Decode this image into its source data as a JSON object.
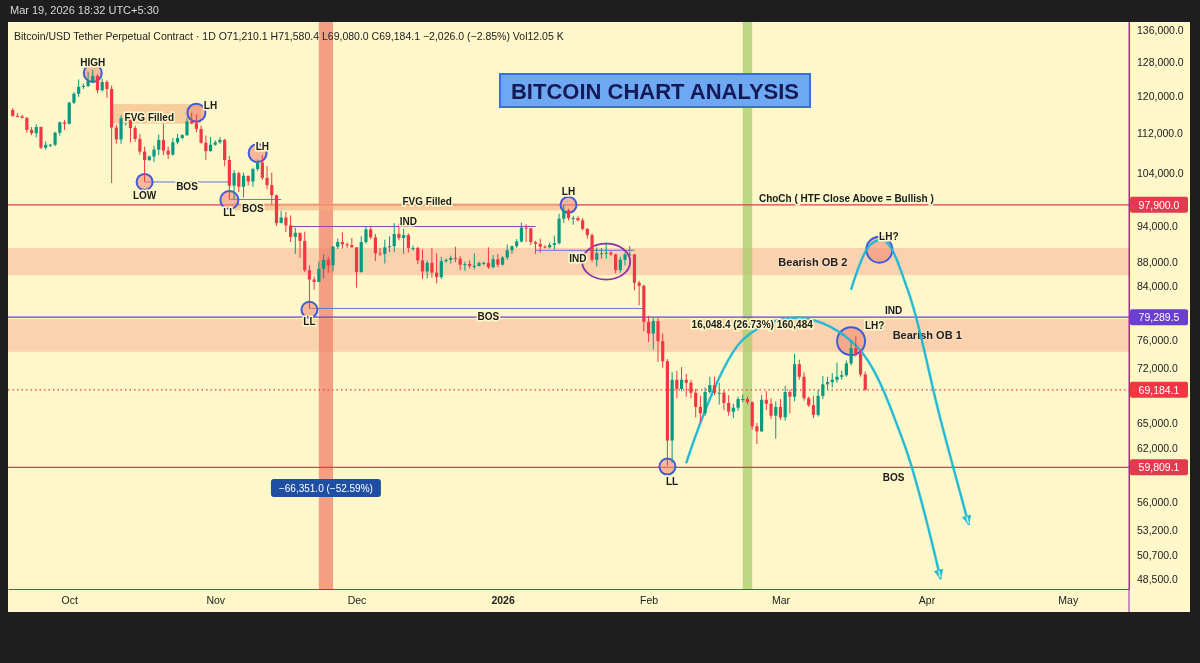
{
  "chart_data": {
    "type": "candlestick",
    "title": "BITCOIN CHART ANALYSIS",
    "subtitle": "Bitcoin/USD Tether Perpetual Contract · 1D   O71,210.1  H71,580.4  L69,080.0  C69,184.1  −2,026.0 (−2.85%)  Vol12.05 K",
    "log": true,
    "xlim": [
      "2025-09-18",
      "2026-05-14"
    ],
    "ylim": [
      47600,
      138000
    ],
    "xticks": [
      {
        "value": "2025-10-01",
        "label": "Oct"
      },
      {
        "value": "2025-11-01",
        "label": "Nov"
      },
      {
        "value": "2025-12-01",
        "label": "Dec"
      },
      {
        "value": "2026-01-01",
        "label": "2026"
      },
      {
        "value": "2026-02-01",
        "label": "Feb"
      },
      {
        "value": "2026-03-01",
        "label": "Mar"
      },
      {
        "value": "2026-04-01",
        "label": "Apr"
      },
      {
        "value": "2026-05-01",
        "label": "May"
      }
    ],
    "yticks": [
      {
        "value": 136000,
        "label": "136,000.0"
      },
      {
        "value": 128000,
        "label": "128,000.0"
      },
      {
        "value": 120000,
        "label": "120,000.0"
      },
      {
        "value": 112000,
        "label": "112,000.0"
      },
      {
        "value": 104000,
        "label": "104,000.0"
      },
      {
        "value": 94000,
        "label": "94,000.0"
      },
      {
        "value": 88000,
        "label": "88,000.0"
      },
      {
        "value": 84000,
        "label": "84,000.0"
      },
      {
        "value": 76000,
        "label": "76,000.0"
      },
      {
        "value": 72000,
        "label": "72,000.0"
      },
      {
        "value": 65000,
        "label": "65,000.0"
      },
      {
        "value": 62000,
        "label": "62,000.0"
      },
      {
        "value": 56000,
        "label": "56,000.0"
      },
      {
        "value": 53200,
        "label": "53,200.0"
      },
      {
        "value": 50700,
        "label": "50,700.0"
      },
      {
        "value": 48500,
        "label": "48,500.0"
      }
    ],
    "x": [
      "2025-09-19",
      "2025-09-20",
      "2025-09-21",
      "2025-09-22",
      "2025-09-23",
      "2025-09-24",
      "2025-09-25",
      "2025-09-26",
      "2025-09-27",
      "2025-09-28",
      "2025-09-29",
      "2025-09-30",
      "2025-10-01",
      "2025-10-02",
      "2025-10-03",
      "2025-10-04",
      "2025-10-05",
      "2025-10-06",
      "2025-10-07",
      "2025-10-08",
      "2025-10-09",
      "2025-10-10",
      "2025-10-11",
      "2025-10-12",
      "2025-10-13",
      "2025-10-14",
      "2025-10-15",
      "2025-10-16",
      "2025-10-17",
      "2025-10-18",
      "2025-10-19",
      "2025-10-20",
      "2025-10-21",
      "2025-10-22",
      "2025-10-23",
      "2025-10-24",
      "2025-10-25",
      "2025-10-26",
      "2025-10-27",
      "2025-10-28",
      "2025-10-29",
      "2025-10-30",
      "2025-10-31",
      "2025-11-01",
      "2025-11-02",
      "2025-11-03",
      "2025-11-04",
      "2025-11-05",
      "2025-11-06",
      "2025-11-07",
      "2025-11-08",
      "2025-11-09",
      "2025-11-10",
      "2025-11-11",
      "2025-11-12",
      "2025-11-13",
      "2025-11-14",
      "2025-11-15",
      "2025-11-16",
      "2025-11-17",
      "2025-11-18",
      "2025-11-19",
      "2025-11-20",
      "2025-11-21",
      "2025-11-22",
      "2025-11-23",
      "2025-11-24",
      "2025-11-25",
      "2025-11-26",
      "2025-11-27",
      "2025-11-28",
      "2025-11-29",
      "2025-11-30",
      "2025-12-01",
      "2025-12-02",
      "2025-12-03",
      "2025-12-04",
      "2025-12-05",
      "2025-12-06",
      "2025-12-07",
      "2025-12-08",
      "2025-12-09",
      "2025-12-10",
      "2025-12-11",
      "2025-12-12",
      "2025-12-13",
      "2025-12-14",
      "2025-12-15",
      "2025-12-16",
      "2025-12-17",
      "2025-12-18",
      "2025-12-19",
      "2025-12-20",
      "2025-12-21",
      "2025-12-22",
      "2025-12-23",
      "2025-12-24",
      "2025-12-25",
      "2025-12-26",
      "2025-12-27",
      "2025-12-28",
      "2025-12-29",
      "2025-12-30",
      "2025-12-31",
      "2026-01-01",
      "2026-01-02",
      "2026-01-03",
      "2026-01-04",
      "2026-01-05",
      "2026-01-06",
      "2026-01-07",
      "2026-01-08",
      "2026-01-09",
      "2026-01-10",
      "2026-01-11",
      "2026-01-12",
      "2026-01-13",
      "2026-01-14",
      "2026-01-15",
      "2026-01-16",
      "2026-01-17",
      "2026-01-18",
      "2026-01-19",
      "2026-01-20",
      "2026-01-21",
      "2026-01-22",
      "2026-01-23",
      "2026-01-24",
      "2026-01-25",
      "2026-01-26",
      "2026-01-27",
      "2026-01-28",
      "2026-01-29",
      "2026-01-30",
      "2026-01-31",
      "2026-02-01",
      "2026-02-02",
      "2026-02-03",
      "2026-02-04",
      "2026-02-05",
      "2026-02-06",
      "2026-02-07",
      "2026-02-08",
      "2026-02-09",
      "2026-02-10",
      "2026-02-11",
      "2026-02-12",
      "2026-02-13",
      "2026-02-14",
      "2026-02-15",
      "2026-02-16",
      "2026-02-17",
      "2026-02-18",
      "2026-02-19",
      "2026-02-20",
      "2026-02-21",
      "2026-02-22",
      "2026-02-23",
      "2026-02-24",
      "2026-02-25",
      "2026-02-26",
      "2026-02-27",
      "2026-02-28",
      "2026-03-01",
      "2026-03-02",
      "2026-03-03",
      "2026-03-04",
      "2026-03-05",
      "2026-03-06",
      "2026-03-07",
      "2026-03-08",
      "2026-03-09",
      "2026-03-10",
      "2026-03-11",
      "2026-03-12",
      "2026-03-13",
      "2026-03-14",
      "2026-03-15",
      "2026-03-16",
      "2026-03-17",
      "2026-03-18",
      "2026-03-19"
    ],
    "ohlc": [
      [
        117000,
        117400,
        115500,
        115700
      ],
      [
        115700,
        116300,
        115400,
        115600
      ],
      [
        115600,
        115900,
        115100,
        115300
      ],
      [
        115300,
        115400,
        112100,
        112700
      ],
      [
        112700,
        113300,
        111600,
        112000
      ],
      [
        112000,
        113900,
        111100,
        113300
      ],
      [
        113300,
        113400,
        108700,
        109000
      ],
      [
        109000,
        110300,
        108600,
        109600
      ],
      [
        109600,
        109800,
        109100,
        109600
      ],
      [
        109600,
        112300,
        109300,
        112100
      ],
      [
        112100,
        114500,
        111500,
        114300
      ],
      [
        114300,
        114800,
        112700,
        114000
      ],
      [
        114000,
        118800,
        113900,
        118600
      ],
      [
        118600,
        121000,
        118300,
        120600
      ],
      [
        120600,
        123900,
        119900,
        122200
      ],
      [
        122200,
        122900,
        121700,
        122400
      ],
      [
        122400,
        125700,
        122100,
        123500
      ],
      [
        123500,
        126200,
        123100,
        124700
      ],
      [
        124700,
        125100,
        120700,
        121400
      ],
      [
        121400,
        124100,
        121100,
        123300
      ],
      [
        123300,
        123700,
        119700,
        121700
      ],
      [
        121700,
        122500,
        102000,
        113200
      ],
      [
        113200,
        113800,
        109800,
        110700
      ],
      [
        110700,
        115800,
        109800,
        115200
      ],
      [
        115200,
        116000,
        113600,
        115300
      ],
      [
        115300,
        115500,
        110100,
        113100
      ],
      [
        113100,
        113600,
        110200,
        110800
      ],
      [
        110800,
        111800,
        107600,
        108200
      ],
      [
        108200,
        109200,
        102200,
        106500
      ],
      [
        106500,
        107400,
        106300,
        107200
      ],
      [
        107200,
        109400,
        106100,
        108600
      ],
      [
        108600,
        111700,
        107500,
        110600
      ],
      [
        110600,
        114000,
        107500,
        108400
      ],
      [
        108400,
        109200,
        106700,
        107600
      ],
      [
        107600,
        111000,
        107400,
        110100
      ],
      [
        110100,
        111900,
        109700,
        111000
      ],
      [
        111000,
        111800,
        110700,
        111600
      ],
      [
        111600,
        115300,
        111400,
        114500
      ],
      [
        114500,
        116400,
        113900,
        114100
      ],
      [
        114100,
        116000,
        112200,
        112900
      ],
      [
        112900,
        113600,
        109800,
        110000
      ],
      [
        110000,
        111500,
        106500,
        108300
      ],
      [
        108300,
        111200,
        108200,
        109600
      ],
      [
        109600,
        110500,
        109400,
        110100
      ],
      [
        110100,
        111200,
        109800,
        110600
      ],
      [
        110600,
        110800,
        105300,
        106500
      ],
      [
        106500,
        107300,
        98900,
        101500
      ],
      [
        101500,
        104500,
        98800,
        103900
      ],
      [
        103900,
        104200,
        100300,
        101300
      ],
      [
        101300,
        104000,
        99300,
        103400
      ],
      [
        103400,
        103400,
        101500,
        102300
      ],
      [
        102300,
        105000,
        101300,
        104700
      ],
      [
        104700,
        106600,
        104300,
        106000
      ],
      [
        106000,
        107500,
        102600,
        103000
      ],
      [
        103000,
        105300,
        100800,
        101600
      ],
      [
        101600,
        104000,
        98000,
        99700
      ],
      [
        99700,
        99800,
        94100,
        94600
      ],
      [
        94600,
        96800,
        94600,
        95600
      ],
      [
        95600,
        96600,
        93000,
        94200
      ],
      [
        94200,
        96000,
        91300,
        92200
      ],
      [
        92200,
        93800,
        89300,
        92900
      ],
      [
        92900,
        92900,
        88600,
        91500
      ],
      [
        91500,
        93100,
        86300,
        86600
      ],
      [
        86600,
        87400,
        80600,
        85100
      ],
      [
        85100,
        85600,
        83500,
        84700
      ],
      [
        84700,
        88000,
        84700,
        86800
      ],
      [
        86800,
        89200,
        85300,
        88300
      ],
      [
        88300,
        88800,
        86200,
        87400
      ],
      [
        87400,
        90600,
        86400,
        90500
      ],
      [
        90500,
        91900,
        90100,
        91300
      ],
      [
        91300,
        93000,
        90200,
        90900
      ],
      [
        90900,
        91200,
        90300,
        90800
      ],
      [
        90800,
        92000,
        90400,
        90400
      ],
      [
        90400,
        90400,
        83800,
        86300
      ],
      [
        86300,
        92300,
        86200,
        91300
      ],
      [
        91300,
        94100,
        91000,
        93500
      ],
      [
        93500,
        94100,
        91800,
        92100
      ],
      [
        92100,
        92700,
        88100,
        89400
      ],
      [
        89400,
        90300,
        89000,
        89300
      ],
      [
        89300,
        91700,
        87700,
        90400
      ],
      [
        90400,
        92300,
        89600,
        90600
      ],
      [
        90600,
        94600,
        89600,
        92700
      ],
      [
        92700,
        94500,
        91600,
        92000
      ],
      [
        92000,
        93600,
        89300,
        92500
      ],
      [
        92500,
        92800,
        89500,
        90300
      ],
      [
        90300,
        90700,
        89800,
        90300
      ],
      [
        90300,
        90500,
        87600,
        88200
      ],
      [
        88200,
        90000,
        85200,
        86400
      ],
      [
        86400,
        88200,
        85300,
        87800
      ],
      [
        87800,
        90300,
        85400,
        86200
      ],
      [
        86200,
        89400,
        84500,
        85500
      ],
      [
        85500,
        88800,
        85200,
        88100
      ],
      [
        88100,
        88500,
        87800,
        88300
      ],
      [
        88300,
        89000,
        87700,
        88600
      ],
      [
        88600,
        90500,
        87900,
        88500
      ],
      [
        88500,
        88900,
        86600,
        87500
      ],
      [
        87500,
        88000,
        86500,
        87600
      ],
      [
        87600,
        88200,
        86900,
        87300
      ],
      [
        87300,
        89400,
        86700,
        87300
      ],
      [
        87300,
        88000,
        87200,
        87800
      ],
      [
        87800,
        88000,
        87400,
        87800
      ],
      [
        87800,
        90400,
        86800,
        87100
      ],
      [
        87100,
        89100,
        86900,
        88400
      ],
      [
        88400,
        89300,
        87100,
        87500
      ],
      [
        87500,
        88900,
        87400,
        88700
      ],
      [
        88700,
        90900,
        88300,
        89900
      ],
      [
        89900,
        90700,
        89300,
        90600
      ],
      [
        90600,
        91800,
        90300,
        91400
      ],
      [
        91400,
        94700,
        91200,
        93800
      ],
      [
        93800,
        94400,
        91300,
        93700
      ],
      [
        93700,
        93700,
        90800,
        91300
      ],
      [
        91300,
        91500,
        89300,
        91000
      ],
      [
        91000,
        91900,
        89500,
        90500
      ],
      [
        90500,
        90800,
        90200,
        90400
      ],
      [
        90400,
        91200,
        90200,
        90800
      ],
      [
        90800,
        92400,
        90000,
        91100
      ],
      [
        91100,
        96300,
        90900,
        95400
      ],
      [
        95400,
        97900,
        94600,
        96900
      ],
      [
        96900,
        97200,
        95100,
        95500
      ],
      [
        95500,
        95900,
        94300,
        95500
      ],
      [
        95500,
        95800,
        94900,
        95100
      ],
      [
        95100,
        95500,
        93300,
        93600
      ],
      [
        93600,
        93700,
        91900,
        92500
      ],
      [
        92500,
        92800,
        87900,
        88300
      ],
      [
        88300,
        90400,
        87200,
        89400
      ],
      [
        89400,
        90300,
        88500,
        89400
      ],
      [
        89400,
        91200,
        88500,
        89500
      ],
      [
        89500,
        89800,
        88900,
        89200
      ],
      [
        89200,
        89300,
        86100,
        86600
      ],
      [
        86600,
        88800,
        86200,
        88300
      ],
      [
        88300,
        89500,
        87400,
        89200
      ],
      [
        89200,
        90600,
        88900,
        89200
      ],
      [
        89200,
        89300,
        83400,
        84600
      ],
      [
        84600,
        84900,
        81100,
        84100
      ],
      [
        84100,
        84300,
        77200,
        78600
      ],
      [
        78600,
        79500,
        75700,
        76900
      ],
      [
        76900,
        79300,
        74600,
        78700
      ],
      [
        78700,
        79200,
        72900,
        75800
      ],
      [
        75800,
        76900,
        72100,
        73000
      ],
      [
        73000,
        73300,
        60000,
        62900
      ],
      [
        62900,
        71500,
        60300,
        70500
      ],
      [
        70500,
        71700,
        68100,
        69300
      ],
      [
        69300,
        72200,
        69000,
        70500
      ],
      [
        70500,
        71300,
        68300,
        70100
      ],
      [
        70100,
        70500,
        68100,
        68800
      ],
      [
        68800,
        69300,
        65700,
        67000
      ],
      [
        67000,
        68400,
        65100,
        66200
      ],
      [
        66200,
        69500,
        65900,
        68900
      ],
      [
        68900,
        70900,
        68700,
        69800
      ],
      [
        69800,
        70900,
        68500,
        68800
      ],
      [
        68800,
        70100,
        67300,
        68800
      ],
      [
        68800,
        69100,
        66600,
        67500
      ],
      [
        67500,
        68500,
        65900,
        66400
      ],
      [
        66400,
        67400,
        65600,
        66900
      ],
      [
        66900,
        68300,
        66500,
        68000
      ],
      [
        68000,
        68600,
        67600,
        68000
      ],
      [
        68000,
        68300,
        67300,
        67600
      ],
      [
        67600,
        67700,
        64200,
        64600
      ],
      [
        64600,
        65000,
        62500,
        64000
      ],
      [
        64000,
        68500,
        63900,
        67900
      ],
      [
        67900,
        69000,
        66600,
        67400
      ],
      [
        67400,
        68100,
        65500,
        65900
      ],
      [
        65900,
        67700,
        63100,
        67000
      ],
      [
        67000,
        68000,
        65400,
        65700
      ],
      [
        65700,
        69700,
        65300,
        68900
      ],
      [
        68900,
        69200,
        66200,
        68300
      ],
      [
        68300,
        74000,
        67700,
        72600
      ],
      [
        72600,
        73200,
        70500,
        70900
      ],
      [
        70900,
        71500,
        67800,
        68100
      ],
      [
        68100,
        68300,
        67000,
        67200
      ],
      [
        67200,
        68400,
        65600,
        66000
      ],
      [
        66000,
        69200,
        65800,
        68400
      ],
      [
        68400,
        71000,
        68000,
        69900
      ],
      [
        69900,
        70900,
        69300,
        70200
      ],
      [
        70200,
        71400,
        69500,
        70500
      ],
      [
        70500,
        72800,
        70100,
        70900
      ],
      [
        70900,
        71700,
        70500,
        71100
      ],
      [
        71100,
        73100,
        70900,
        72700
      ],
      [
        72700,
        75900,
        72400,
        74800
      ],
      [
        74800,
        76500,
        73600,
        74000
      ],
      [
        74000,
        74600,
        70900,
        71210.1
      ],
      [
        71210.1,
        71580.4,
        69080,
        69184.1
      ]
    ],
    "ref_lines": [
      {
        "axis": "y",
        "value": 97900,
        "label": "97,900.0",
        "color": "#e53950"
      },
      {
        "axis": "y",
        "value": 79289.5,
        "label": "79,289.5",
        "color": "#6a3fd0"
      },
      {
        "axis": "y",
        "value": 69184.1,
        "label": "69,184.1",
        "color": "#f23645",
        "line_style": "dotted"
      },
      {
        "axis": "y",
        "value": 59809.1,
        "label": "59,809.1",
        "color": "#e53950"
      }
    ],
    "bands": [
      {
        "axis": "y",
        "from": 85800,
        "to": 90300,
        "label": "Bearish OB 2",
        "color": "#f8b496"
      },
      {
        "axis": "y",
        "from": 74300,
        "to": 79000,
        "label": "Bearish OB 1",
        "color": "#f8b496"
      },
      {
        "axis": "x",
        "from": "2025-11-23",
        "to": "2025-11-26",
        "label": "−66,351.0 (−52.59%)",
        "color": "#f0806a"
      },
      {
        "axis": "x",
        "from": "2026-02-21",
        "to": "2026-02-23",
        "color": "#a8cc6a"
      }
    ],
    "annotations": [
      "Mar 19, 2026 18:32 UTC+5:30",
      "HIGH",
      "FVG Filled",
      "LH",
      {
        "text": "LOW",
        "x": "2025-10-17",
        "y": 102200
      },
      "BOS",
      {
        "text": "LL",
        "x": "2025-11-04",
        "y": 98900
      },
      "BOS",
      "LH",
      {
        "text": "LL",
        "x": "2025-11-21",
        "y": 80600
      },
      "FVG Filled",
      "IND",
      "BOS",
      "LH",
      "IND",
      "ChoCh ( HTF Close Above = Bullish )",
      "LH?",
      "IND",
      "LH?",
      "16,048.4 (26.73%) 160,484",
      "LL",
      "BOS"
    ]
  }
}
